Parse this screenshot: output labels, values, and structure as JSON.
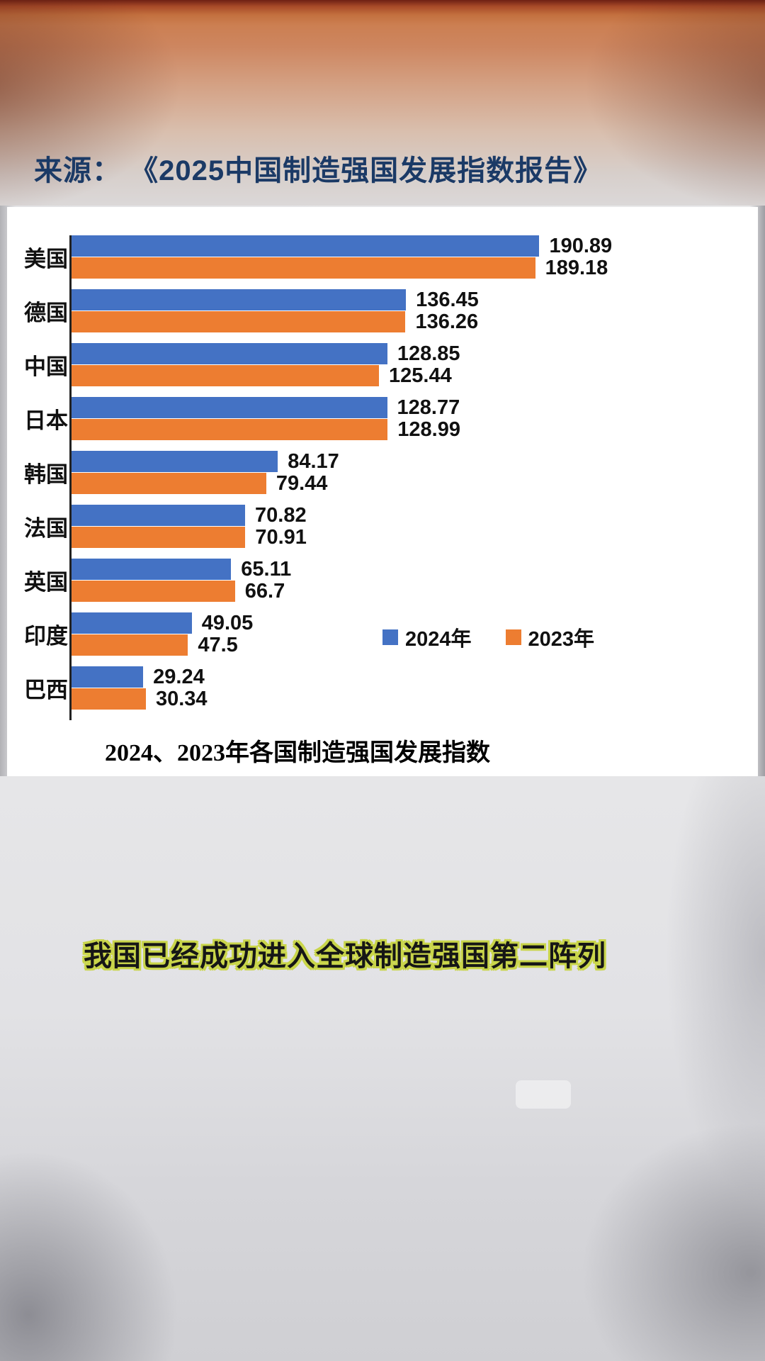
{
  "page": {
    "source_line": "来源： 《2025中国制造强国发展指数报告》",
    "subtitle": "我国已经成功进入全球制造强国第二阵列"
  },
  "chart_data": {
    "type": "bar",
    "orientation": "horizontal",
    "title": "2024、2023年各国制造强国发展指数",
    "categories": [
      "美国",
      "德国",
      "中国",
      "日本",
      "韩国",
      "法国",
      "英国",
      "印度",
      "巴西"
    ],
    "series": [
      {
        "name": "2024年",
        "color": "#4472c4",
        "values": [
          190.89,
          136.45,
          128.85,
          128.77,
          84.17,
          70.82,
          65.11,
          49.05,
          29.24
        ]
      },
      {
        "name": "2023年",
        "color": "#ed7d31",
        "values": [
          189.18,
          136.26,
          125.44,
          128.99,
          79.44,
          70.91,
          66.7,
          47.5,
          30.34
        ]
      }
    ],
    "xlim": [
      0,
      200
    ],
    "grid": false,
    "legend_position": "center-right",
    "value_labels": true
  }
}
